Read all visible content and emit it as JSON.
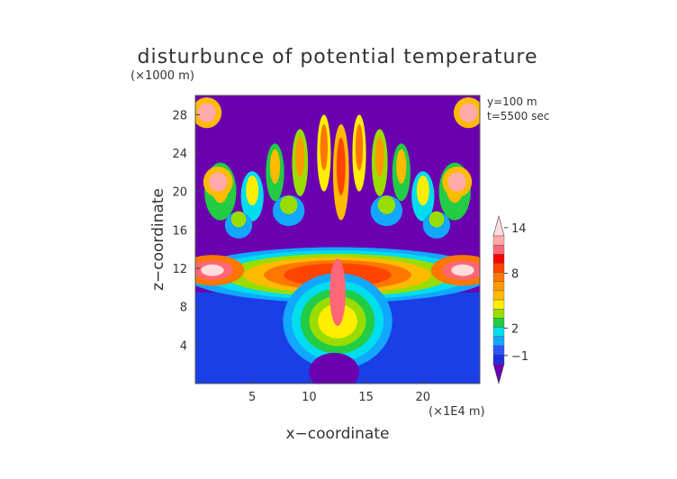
{
  "chart_data": {
    "type": "heatmap",
    "title": "disturbunce of potential temperature",
    "xlabel": "x−coordinate",
    "ylabel": "z−coordinate",
    "x_unit": "(×1E4 m)",
    "y_unit": "(×1000 m)",
    "xlim": [
      0,
      25
    ],
    "ylim": [
      0,
      30
    ],
    "x_ticks": [
      5,
      10,
      15,
      20
    ],
    "y_ticks": [
      4,
      8,
      12,
      16,
      20,
      24,
      28
    ],
    "annotations": [
      "y=100 m",
      "t=5500 sec"
    ],
    "colorbar": {
      "tick_labels": [
        "−1",
        "2",
        "8",
        "14"
      ],
      "tick_values": [
        -1,
        2,
        8,
        14
      ],
      "colors": [
        "#6a00b0",
        "#1a2fe0",
        "#2a55ff",
        "#12a8ff",
        "#00ddee",
        "#22cc44",
        "#99dd00",
        "#ffee00",
        "#ffbb00",
        "#ff9900",
        "#ff7700",
        "#ff4400",
        "#ff0000",
        "#ff6677",
        "#ffaaaa",
        "#ffdddd"
      ],
      "value_levels": [
        -3,
        -1,
        0,
        1,
        2,
        3,
        4,
        5,
        6,
        7,
        8,
        9,
        10,
        11,
        12,
        14
      ],
      "extend": "both"
    },
    "background_value": -3,
    "grid": false
  }
}
